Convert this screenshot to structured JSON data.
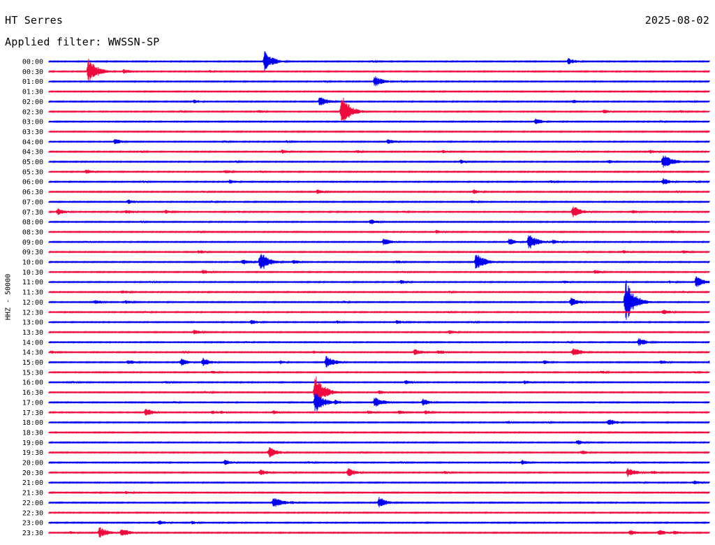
{
  "header": {
    "station": "HT Serres",
    "date": "2025-08-02",
    "filter": "Applied filter: WWSSN-SP"
  },
  "channel_label": "HHZ - 50000",
  "colors": {
    "even_row": "#0000ee",
    "odd_row": "#ee0a3c",
    "text": "#000000",
    "background": "#ffffff"
  },
  "chart_data": {
    "type": "line",
    "chart_kind": "helicorder",
    "ylabel": "HHZ - 50000",
    "row_minutes": 30,
    "x_range_minutes": [
      0,
      30
    ],
    "grid": false,
    "legend": "none",
    "series_colors": [
      "#0000ee",
      "#ee0a3c"
    ],
    "rows": [
      {
        "time": "00:00",
        "events": [
          [
            9.8,
            2.4
          ],
          [
            23.6,
            0.8
          ],
          [
            14.7,
            0.3
          ]
        ]
      },
      {
        "time": "00:30",
        "events": [
          [
            1.8,
            3.2
          ],
          [
            3.4,
            0.6
          ],
          [
            7.3,
            0.3
          ],
          [
            30.0,
            0.2
          ]
        ]
      },
      {
        "time": "01:00",
        "events": [
          [
            14.8,
            1.4
          ],
          [
            12.5,
            0.3
          ],
          [
            16.0,
            0.3
          ]
        ]
      },
      {
        "time": "01:30",
        "events": []
      },
      {
        "time": "02:00",
        "events": [
          [
            12.3,
            1.2
          ],
          [
            6.6,
            0.5
          ],
          [
            23.8,
            0.5
          ],
          [
            29.1,
            0.3
          ]
        ]
      },
      {
        "time": "02:30",
        "events": [
          [
            13.3,
            3.8
          ],
          [
            9.5,
            0.5
          ],
          [
            25.2,
            0.5
          ],
          [
            28.7,
            0.4
          ],
          [
            6.0,
            0.3
          ]
        ]
      },
      {
        "time": "03:00",
        "events": [
          [
            22.1,
            0.8
          ],
          [
            27.8,
            0.3
          ]
        ]
      },
      {
        "time": "03:30",
        "events": []
      },
      {
        "time": "04:00",
        "events": [
          [
            3.0,
            0.7
          ],
          [
            15.4,
            0.7
          ],
          [
            8.0,
            0.3
          ],
          [
            10.8,
            0.3
          ]
        ]
      },
      {
        "time": "04:30",
        "events": [
          [
            10.6,
            0.5
          ],
          [
            14.0,
            0.4
          ],
          [
            17.9,
            0.4
          ],
          [
            27.3,
            0.5
          ],
          [
            4.2,
            0.3
          ],
          [
            24.0,
            0.3
          ]
        ]
      },
      {
        "time": "05:00",
        "events": [
          [
            27.9,
            2.1
          ],
          [
            18.7,
            0.5
          ],
          [
            25.4,
            0.5
          ],
          [
            8.5,
            0.3
          ]
        ]
      },
      {
        "time": "05:30",
        "events": [
          [
            1.7,
            0.6
          ],
          [
            8.0,
            0.5
          ],
          [
            9.6,
            0.3
          ],
          [
            27.7,
            0.3
          ]
        ]
      },
      {
        "time": "06:00",
        "events": [
          [
            27.9,
            0.9
          ],
          [
            8.2,
            0.6
          ],
          [
            4.3,
            0.3
          ],
          [
            22.8,
            0.4
          ],
          [
            29.3,
            0.3
          ]
        ]
      },
      {
        "time": "06:30",
        "events": [
          [
            12.2,
            0.6
          ],
          [
            19.3,
            0.6
          ],
          [
            7.0,
            0.3
          ],
          [
            28.5,
            0.3
          ]
        ]
      },
      {
        "time": "07:00",
        "events": [
          [
            3.6,
            0.6
          ],
          [
            7.4,
            0.3
          ],
          [
            19.2,
            0.4
          ]
        ]
      },
      {
        "time": "07:30",
        "events": [
          [
            0.4,
            0.8
          ],
          [
            23.8,
            1.6
          ],
          [
            3.5,
            0.6
          ],
          [
            5.3,
            0.5
          ],
          [
            26.5,
            0.5
          ],
          [
            8.6,
            0.3
          ],
          [
            16.1,
            0.3
          ]
        ]
      },
      {
        "time": "08:00",
        "events": [
          [
            14.6,
            0.7
          ],
          [
            4.2,
            0.3
          ],
          [
            27.4,
            0.3
          ]
        ]
      },
      {
        "time": "08:30",
        "events": [
          [
            17.6,
            0.5
          ],
          [
            28.3,
            0.4
          ],
          [
            6.8,
            0.3
          ]
        ]
      },
      {
        "time": "09:00",
        "events": [
          [
            21.8,
            2.0
          ],
          [
            15.2,
            0.9
          ],
          [
            20.9,
            0.8
          ],
          [
            22.9,
            0.6
          ],
          [
            1.7,
            0.3
          ]
        ]
      },
      {
        "time": "09:30",
        "events": [
          [
            6.8,
            0.5
          ],
          [
            26.1,
            0.5
          ],
          [
            28.8,
            0.5
          ],
          [
            24.3,
            0.3
          ]
        ]
      },
      {
        "time": "10:00",
        "events": [
          [
            9.6,
            2.5
          ],
          [
            19.4,
            2.2
          ],
          [
            8.8,
            0.8
          ],
          [
            11.1,
            0.5
          ],
          [
            15.8,
            0.4
          ]
        ]
      },
      {
        "time": "10:30",
        "events": [
          [
            7.0,
            0.6
          ],
          [
            24.8,
            0.5
          ],
          [
            16.1,
            0.3
          ]
        ]
      },
      {
        "time": "11:00",
        "events": [
          [
            29.4,
            1.4
          ],
          [
            16.0,
            0.5
          ],
          [
            28.2,
            0.4
          ],
          [
            4.6,
            0.3
          ],
          [
            23.4,
            0.4
          ]
        ]
      },
      {
        "time": "11:30",
        "events": [
          [
            3.3,
            0.5
          ],
          [
            18.2,
            0.3
          ],
          [
            28.8,
            0.3
          ]
        ]
      },
      {
        "time": "12:00",
        "events": [
          [
            26.2,
            5.2
          ],
          [
            23.7,
            1.1
          ],
          [
            2.1,
            0.6
          ],
          [
            3.5,
            0.5
          ],
          [
            13.4,
            0.3
          ]
        ]
      },
      {
        "time": "12:30",
        "events": [
          [
            27.9,
            0.7
          ],
          [
            4.4,
            0.3
          ],
          [
            18.1,
            0.3
          ]
        ]
      },
      {
        "time": "13:00",
        "events": [
          [
            9.2,
            0.6
          ],
          [
            15.8,
            0.6
          ],
          [
            13.1,
            0.4
          ],
          [
            19.2,
            0.3
          ]
        ]
      },
      {
        "time": "13:30",
        "events": [
          [
            6.6,
            0.6
          ],
          [
            18.2,
            0.5
          ]
        ]
      },
      {
        "time": "14:00",
        "events": [
          [
            26.8,
            1.0
          ],
          [
            9.0,
            0.3
          ],
          [
            23.6,
            0.3
          ]
        ]
      },
      {
        "time": "14:30",
        "events": [
          [
            16.6,
            0.8
          ],
          [
            23.8,
            1.3
          ],
          [
            12.0,
            0.4
          ],
          [
            17.7,
            0.6
          ],
          [
            6.1,
            0.3
          ],
          [
            0.1,
            0.4
          ]
        ]
      },
      {
        "time": "15:00",
        "events": [
          [
            6.0,
            1.0
          ],
          [
            7.0,
            1.1
          ],
          [
            12.6,
            1.6
          ],
          [
            3.6,
            0.6
          ],
          [
            10.5,
            0.5
          ],
          [
            22.5,
            0.5
          ],
          [
            27.8,
            0.5
          ],
          [
            30.0,
            0.4
          ]
        ]
      },
      {
        "time": "15:30",
        "events": [
          [
            7.4,
            0.4
          ],
          [
            25.1,
            0.4
          ],
          [
            29.3,
            0.3
          ]
        ]
      },
      {
        "time": "16:00",
        "events": [
          [
            16.2,
            0.6
          ],
          [
            21.6,
            0.5
          ],
          [
            5.3,
            0.4
          ],
          [
            1.1,
            0.3
          ]
        ]
      },
      {
        "time": "16:30",
        "events": [
          [
            12.1,
            4.2
          ],
          [
            15.0,
            0.5
          ],
          [
            7.1,
            0.4
          ]
        ]
      },
      {
        "time": "17:00",
        "events": [
          [
            12.1,
            2.7
          ],
          [
            14.8,
            1.4
          ],
          [
            17.0,
            0.9
          ],
          [
            5.7,
            0.3
          ],
          [
            13.0,
            0.6
          ]
        ]
      },
      {
        "time": "17:30",
        "events": [
          [
            4.4,
            1.0
          ],
          [
            7.4,
            0.5
          ],
          [
            7.8,
            0.5
          ],
          [
            10.2,
            0.5
          ],
          [
            14.5,
            0.5
          ],
          [
            15.9,
            0.5
          ],
          [
            17.1,
            0.5
          ]
        ]
      },
      {
        "time": "18:00",
        "events": [
          [
            25.4,
            0.9
          ],
          [
            20.8,
            0.4
          ],
          [
            22.6,
            0.3
          ]
        ]
      },
      {
        "time": "18:30",
        "events": []
      },
      {
        "time": "19:00",
        "events": [
          [
            24.0,
            0.6
          ]
        ]
      },
      {
        "time": "19:30",
        "events": [
          [
            10.0,
            1.3
          ],
          [
            24.2,
            0.5
          ],
          [
            14.2,
            0.3
          ]
        ]
      },
      {
        "time": "20:00",
        "events": [
          [
            8.0,
            0.7
          ],
          [
            21.5,
            0.6
          ],
          [
            11.8,
            0.4
          ],
          [
            16.0,
            0.3
          ],
          [
            25.5,
            0.3
          ],
          [
            26.7,
            0.3
          ]
        ]
      },
      {
        "time": "20:30",
        "events": [
          [
            13.6,
            1.1
          ],
          [
            26.3,
            1.2
          ],
          [
            9.6,
            0.8
          ],
          [
            27.4,
            0.5
          ],
          [
            18.0,
            0.4
          ],
          [
            11.0,
            0.3
          ]
        ]
      },
      {
        "time": "21:00",
        "events": [
          [
            29.3,
            0.6
          ],
          [
            26.8,
            0.3
          ]
        ]
      },
      {
        "time": "21:30",
        "events": [
          [
            3.5,
            0.4
          ]
        ]
      },
      {
        "time": "22:00",
        "events": [
          [
            10.2,
            1.6
          ],
          [
            15.0,
            1.3
          ],
          [
            11.0,
            0.4
          ]
        ]
      },
      {
        "time": "22:30",
        "events": []
      },
      {
        "time": "23:00",
        "events": [
          [
            5.0,
            0.6
          ],
          [
            6.5,
            0.4
          ]
        ]
      },
      {
        "time": "23:30",
        "events": [
          [
            2.3,
            1.4
          ],
          [
            3.3,
            1.1
          ],
          [
            26.4,
            0.7
          ],
          [
            27.7,
            0.7
          ],
          [
            28.4,
            0.6
          ],
          [
            1.0,
            0.4
          ]
        ]
      }
    ]
  }
}
